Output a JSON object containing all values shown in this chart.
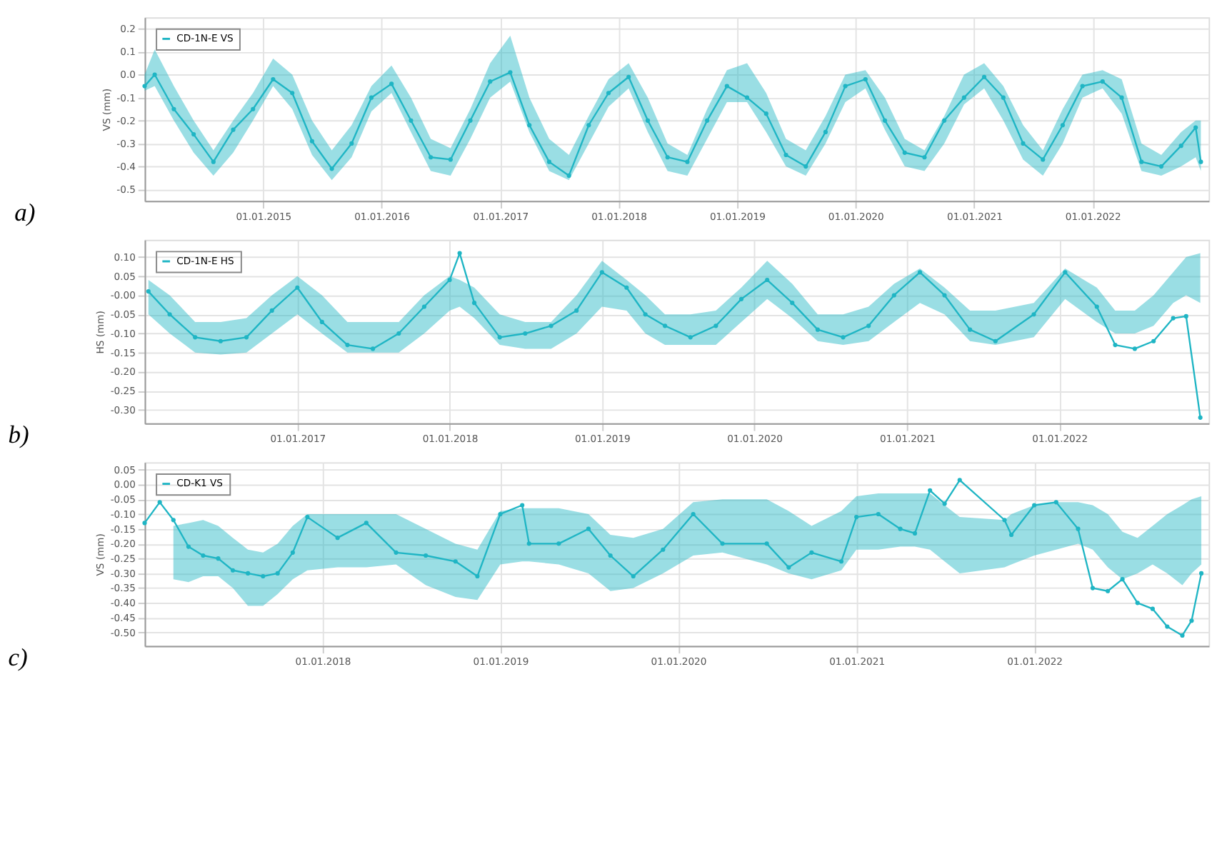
{
  "chart_data": [
    {
      "type": "line",
      "title": "a)",
      "ylabel": "VS (mm)",
      "grid": true,
      "legend": "top left",
      "marker": "circle",
      "line_style": "solid",
      "xlim": [
        "2014-01-01",
        "2022-12-25"
      ],
      "ylim": [
        -0.55,
        0.25
      ],
      "xticks": [
        {
          "value": "2015-01-01",
          "label": "01.01.2015"
        },
        {
          "value": "2016-01-01",
          "label": "01.01.2016"
        },
        {
          "value": "2017-01-01",
          "label": "01.01.2017"
        },
        {
          "value": "2018-01-01",
          "label": "01.01.2018"
        },
        {
          "value": "2019-01-01",
          "label": "01.01.2019"
        },
        {
          "value": "2020-01-01",
          "label": "01.01.2020"
        },
        {
          "value": "2021-01-01",
          "label": "01.01.2021"
        },
        {
          "value": "2022-01-01",
          "label": "01.01.2022"
        }
      ],
      "yticks": [
        0.2,
        0.1,
        {
          "value": 0,
          "label": "0.0"
        },
        -0.1,
        -0.2,
        -0.3,
        -0.4,
        -0.5
      ],
      "x": [
        "2014-01-01",
        "2014-02-01",
        "2014-04-01",
        "2014-06-01",
        "2014-08-01",
        "2014-10-01",
        "2014-12-01",
        "2015-02-01",
        "2015-04-01",
        "2015-06-01",
        "2015-08-01",
        "2015-10-01",
        "2015-12-01",
        "2016-02-01",
        "2016-04-01",
        "2016-06-01",
        "2016-08-01",
        "2016-10-01",
        "2016-12-01",
        "2017-02-01",
        "2017-04-01",
        "2017-06-01",
        "2017-08-01",
        "2017-10-01",
        "2017-12-01",
        "2018-02-01",
        "2018-04-01",
        "2018-06-01",
        "2018-08-01",
        "2018-10-01",
        "2018-12-01",
        "2019-02-01",
        "2019-04-01",
        "2019-06-01",
        "2019-08-01",
        "2019-10-01",
        "2019-12-01",
        "2020-02-01",
        "2020-04-01",
        "2020-06-01",
        "2020-08-01",
        "2020-10-01",
        "2020-12-01",
        "2021-02-01",
        "2021-04-01",
        "2021-06-01",
        "2021-08-01",
        "2021-10-01",
        "2021-12-01",
        "2022-02-01",
        "2022-04-01",
        "2022-06-01",
        "2022-08-01",
        "2022-10-01",
        "2022-11-15",
        "2022-12-01"
      ],
      "series": [
        {
          "name": "CD-1N-E VS",
          "color": "#1fb5c4",
          "values": [
            -0.05,
            0.0,
            -0.15,
            -0.26,
            -0.38,
            -0.24,
            -0.15,
            -0.02,
            -0.08,
            -0.29,
            -0.41,
            -0.3,
            -0.1,
            -0.04,
            -0.2,
            -0.36,
            -0.37,
            -0.2,
            -0.03,
            0.01,
            -0.22,
            -0.38,
            -0.44,
            -0.22,
            -0.08,
            -0.01,
            -0.2,
            -0.36,
            -0.38,
            -0.2,
            -0.05,
            -0.1,
            -0.17,
            -0.35,
            -0.4,
            -0.25,
            -0.05,
            -0.02,
            -0.2,
            -0.34,
            -0.36,
            -0.2,
            -0.1,
            -0.01,
            -0.1,
            -0.3,
            -0.37,
            -0.22,
            -0.05,
            -0.03,
            -0.1,
            -0.38,
            -0.4,
            -0.31,
            -0.23,
            -0.38
          ],
          "lower": [
            -0.07,
            -0.05,
            -0.2,
            -0.34,
            -0.44,
            -0.34,
            -0.2,
            -0.05,
            -0.15,
            -0.35,
            -0.46,
            -0.36,
            -0.16,
            -0.08,
            -0.25,
            -0.42,
            -0.44,
            -0.28,
            -0.1,
            -0.03,
            -0.25,
            -0.42,
            -0.46,
            -0.3,
            -0.14,
            -0.06,
            -0.25,
            -0.42,
            -0.44,
            -0.28,
            -0.12,
            -0.12,
            -0.25,
            -0.4,
            -0.44,
            -0.3,
            -0.12,
            -0.06,
            -0.24,
            -0.4,
            -0.42,
            -0.3,
            -0.13,
            -0.06,
            -0.2,
            -0.37,
            -0.44,
            -0.3,
            -0.1,
            -0.06,
            -0.17,
            -0.42,
            -0.44,
            -0.4,
            -0.36,
            -0.42
          ],
          "upper": [
            0.0,
            0.11,
            -0.05,
            -0.2,
            -0.33,
            -0.2,
            -0.08,
            0.07,
            0.0,
            -0.2,
            -0.33,
            -0.22,
            -0.05,
            0.04,
            -0.1,
            -0.28,
            -0.32,
            -0.15,
            0.05,
            0.17,
            -0.1,
            -0.28,
            -0.35,
            -0.18,
            -0.02,
            0.05,
            -0.1,
            -0.3,
            -0.35,
            -0.15,
            0.02,
            0.05,
            -0.08,
            -0.28,
            -0.33,
            -0.18,
            0.0,
            0.02,
            -0.1,
            -0.28,
            -0.33,
            -0.18,
            0.0,
            0.05,
            -0.05,
            -0.22,
            -0.33,
            -0.15,
            0.0,
            0.02,
            -0.02,
            -0.3,
            -0.35,
            -0.25,
            -0.2,
            -0.2
          ]
        }
      ]
    },
    {
      "type": "line",
      "title": "b)",
      "ylabel": "HS (mm)",
      "grid": true,
      "legend": "top left",
      "marker": "circle",
      "line_style": "solid",
      "xlim": [
        "2016-01-01",
        "2022-12-25"
      ],
      "ylim": [
        -0.335,
        0.145
      ],
      "xticks": [
        {
          "value": "2017-01-01",
          "label": "01.01.2017"
        },
        {
          "value": "2018-01-01",
          "label": "01.01.2018"
        },
        {
          "value": "2019-01-01",
          "label": "01.01.2019"
        },
        {
          "value": "2020-01-01",
          "label": "01.01.2020"
        },
        {
          "value": "2021-01-01",
          "label": "01.01.2021"
        },
        {
          "value": "2022-01-01",
          "label": "01.01.2022"
        }
      ],
      "yticks": [
        {
          "value": 0.1,
          "label": "0.10"
        },
        0.05,
        {
          "value": 0,
          "label": "-0.00"
        },
        -0.05,
        {
          "value": -0.1,
          "label": "-0.10"
        },
        -0.15,
        {
          "value": -0.2,
          "label": "-0.20"
        },
        -0.25,
        {
          "value": -0.3,
          "label": "-0.30"
        }
      ],
      "x": [
        "2016-01-10",
        "2016-03-01",
        "2016-05-01",
        "2016-07-01",
        "2016-09-01",
        "2016-11-01",
        "2017-01-01",
        "2017-03-01",
        "2017-05-01",
        "2017-07-01",
        "2017-09-01",
        "2017-11-01",
        "2018-01-01",
        "2018-01-25",
        "2018-03-01",
        "2018-05-01",
        "2018-07-01",
        "2018-09-01",
        "2018-11-01",
        "2019-01-01",
        "2019-03-01",
        "2019-04-15",
        "2019-06-01",
        "2019-08-01",
        "2019-10-01",
        "2019-12-01",
        "2020-02-01",
        "2020-04-01",
        "2020-06-01",
        "2020-08-01",
        "2020-10-01",
        "2020-12-01",
        "2021-02-01",
        "2021-04-01",
        "2021-06-01",
        "2021-08-01",
        "2021-11-01",
        "2022-01-15",
        "2022-04-01",
        "2022-05-15",
        "2022-07-01",
        "2022-08-15",
        "2022-10-01",
        "2022-11-01",
        "2022-12-05"
      ],
      "series": [
        {
          "name": "CD-1N-E HS",
          "color": "#1fb5c4",
          "values": [
            0.01,
            -0.05,
            -0.11,
            -0.12,
            -0.11,
            -0.04,
            0.02,
            -0.07,
            -0.13,
            -0.14,
            -0.1,
            -0.03,
            0.04,
            0.11,
            -0.02,
            -0.11,
            -0.1,
            -0.08,
            -0.04,
            0.06,
            0.02,
            -0.05,
            -0.08,
            -0.11,
            -0.08,
            -0.01,
            0.04,
            -0.02,
            -0.09,
            -0.11,
            -0.08,
            0.0,
            0.06,
            0.0,
            -0.09,
            -0.12,
            -0.05,
            0.06,
            -0.03,
            -0.13,
            -0.14,
            -0.12,
            -0.06,
            -0.055,
            -0.32
          ],
          "lower": [
            -0.05,
            -0.1,
            -0.15,
            -0.155,
            -0.15,
            -0.1,
            -0.05,
            -0.1,
            -0.15,
            -0.15,
            -0.15,
            -0.1,
            -0.04,
            -0.03,
            -0.06,
            -0.13,
            -0.14,
            -0.14,
            -0.1,
            -0.03,
            -0.04,
            -0.1,
            -0.13,
            -0.13,
            -0.13,
            -0.07,
            -0.01,
            -0.06,
            -0.12,
            -0.13,
            -0.12,
            -0.07,
            -0.02,
            -0.05,
            -0.12,
            -0.13,
            -0.11,
            -0.01,
            -0.07,
            -0.1,
            -0.1,
            -0.08,
            -0.02,
            0.0,
            -0.02
          ],
          "upper": [
            0.04,
            0.0,
            -0.07,
            -0.07,
            -0.06,
            0.0,
            0.05,
            0.0,
            -0.07,
            -0.07,
            -0.07,
            0.0,
            0.05,
            0.04,
            0.02,
            -0.05,
            -0.07,
            -0.07,
            0.0,
            0.09,
            0.04,
            0.0,
            -0.05,
            -0.05,
            -0.04,
            0.02,
            0.09,
            0.03,
            -0.05,
            -0.05,
            -0.03,
            0.03,
            0.07,
            0.02,
            -0.04,
            -0.04,
            -0.02,
            0.07,
            0.02,
            -0.04,
            -0.04,
            0.0,
            0.06,
            0.1,
            0.11
          ]
        }
      ]
    },
    {
      "type": "line",
      "title": "c)",
      "ylabel": "VS (mm)",
      "grid": true,
      "legend": "top left",
      "marker": "circle",
      "line_style": "solid",
      "xlim": [
        "2017-01-01",
        "2022-12-25"
      ],
      "ylim": [
        -0.545,
        0.075
      ],
      "xticks": [
        {
          "value": "2018-01-01",
          "label": "01.01.2018"
        },
        {
          "value": "2019-01-01",
          "label": "01.01.2019"
        },
        {
          "value": "2020-01-01",
          "label": "01.01.2020"
        },
        {
          "value": "2021-01-01",
          "label": "01.01.2021"
        },
        {
          "value": "2022-01-01",
          "label": "01.01.2022"
        }
      ],
      "yticks": [
        0.05,
        {
          "value": 0,
          "label": "0.00"
        },
        -0.05,
        {
          "value": -0.1,
          "label": "-0.10"
        },
        -0.15,
        {
          "value": -0.2,
          "label": "-0.20"
        },
        -0.25,
        {
          "value": -0.3,
          "label": "-0.30"
        },
        -0.35,
        {
          "value": -0.4,
          "label": "-0.40"
        },
        -0.45,
        {
          "value": -0.5,
          "label": "-0.50"
        }
      ],
      "x": [
        "2017-01-01",
        "2017-02-01",
        "2017-03-01",
        "2017-04-01",
        "2017-05-01",
        "2017-06-01",
        "2017-07-01",
        "2017-08-01",
        "2017-09-01",
        "2017-10-01",
        "2017-11-01",
        "2017-12-01",
        "2018-02-01",
        "2018-04-01",
        "2018-06-01",
        "2018-08-01",
        "2018-10-01",
        "2018-11-15",
        "2019-01-01",
        "2019-02-15",
        "2019-03-01",
        "2019-05-01",
        "2019-07-01",
        "2019-08-15",
        "2019-10-01",
        "2019-12-01",
        "2020-02-01",
        "2020-04-01",
        "2020-07-01",
        "2020-08-15",
        "2020-10-01",
        "2020-12-01",
        "2021-01-01",
        "2021-02-15",
        "2021-04-01",
        "2021-05-01",
        "2021-06-01",
        "2021-07-01",
        "2021-08-01",
        "2021-11-01",
        "2021-11-15",
        "2022-01-01",
        "2022-02-15",
        "2022-04-01",
        "2022-05-01",
        "2022-06-01",
        "2022-07-01",
        "2022-08-01",
        "2022-09-01",
        "2022-10-01",
        "2022-11-01",
        "2022-11-20",
        "2022-12-10"
      ],
      "series": [
        {
          "name": "CD-K1 VS",
          "color": "#1fb5c4",
          "values": [
            -0.13,
            -0.06,
            -0.12,
            -0.21,
            -0.24,
            -0.25,
            -0.29,
            -0.3,
            -0.31,
            -0.3,
            -0.23,
            -0.11,
            -0.18,
            -0.13,
            -0.23,
            -0.24,
            -0.26,
            -0.31,
            -0.1,
            -0.07,
            -0.2,
            -0.2,
            -0.15,
            -0.24,
            -0.31,
            -0.22,
            -0.1,
            -0.2,
            -0.2,
            -0.28,
            -0.23,
            -0.26,
            -0.11,
            -0.1,
            -0.15,
            -0.165,
            -0.02,
            -0.065,
            0.015,
            -0.12,
            -0.17,
            -0.07,
            -0.06,
            -0.15,
            -0.35,
            -0.36,
            -0.32,
            -0.4,
            -0.42,
            -0.48,
            -0.51,
            -0.46,
            -0.3
          ],
          "lower": [
            null,
            null,
            -0.32,
            -0.33,
            -0.31,
            -0.31,
            -0.35,
            -0.41,
            -0.41,
            -0.37,
            -0.32,
            -0.29,
            -0.28,
            -0.28,
            -0.27,
            -0.34,
            -0.38,
            -0.39,
            -0.27,
            -0.26,
            -0.26,
            -0.27,
            -0.3,
            -0.36,
            -0.35,
            -0.3,
            -0.24,
            -0.23,
            -0.27,
            -0.3,
            -0.32,
            -0.29,
            -0.22,
            -0.22,
            -0.21,
            -0.21,
            -0.22,
            -0.26,
            -0.3,
            -0.28,
            -0.27,
            -0.24,
            -0.22,
            -0.2,
            -0.22,
            -0.28,
            -0.32,
            -0.3,
            -0.27,
            -0.3,
            -0.34,
            -0.3,
            -0.27
          ],
          "upper": [
            null,
            null,
            -0.14,
            -0.13,
            -0.12,
            -0.14,
            -0.18,
            -0.22,
            -0.23,
            -0.2,
            -0.14,
            -0.1,
            -0.1,
            -0.1,
            -0.1,
            -0.15,
            -0.2,
            -0.22,
            -0.09,
            -0.08,
            -0.08,
            -0.08,
            -0.1,
            -0.17,
            -0.18,
            -0.15,
            -0.06,
            -0.05,
            -0.05,
            -0.09,
            -0.14,
            -0.09,
            -0.04,
            -0.03,
            -0.03,
            -0.03,
            -0.03,
            -0.07,
            -0.11,
            -0.12,
            -0.1,
            -0.07,
            -0.06,
            -0.06,
            -0.07,
            -0.1,
            -0.16,
            -0.18,
            -0.14,
            -0.1,
            -0.07,
            -0.05,
            -0.04
          ]
        }
      ]
    }
  ]
}
